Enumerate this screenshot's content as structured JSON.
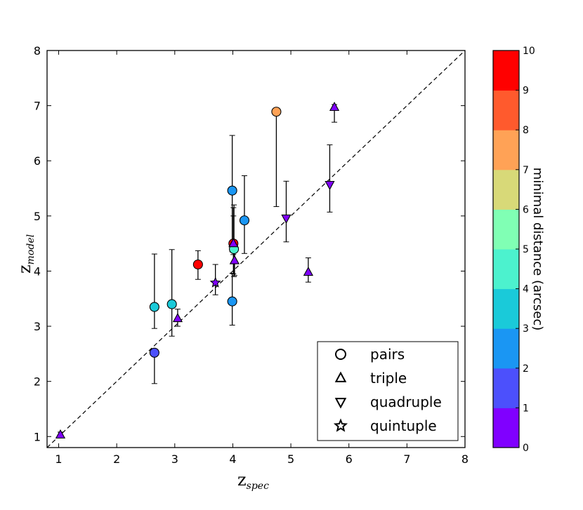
{
  "chart_data": {
    "type": "scatter",
    "title": "",
    "xlabel": {
      "main": "z",
      "sub": "spec"
    },
    "ylabel": {
      "main": "z",
      "sub": "model"
    },
    "xlim": [
      0.8,
      8
    ],
    "ylim": [
      0.8,
      8
    ],
    "xticks": [
      1,
      2,
      3,
      4,
      5,
      6,
      7,
      8
    ],
    "yticks": [
      1,
      2,
      3,
      4,
      5,
      6,
      7,
      8
    ],
    "reference_line": {
      "style": "dashed",
      "from": [
        0.8,
        0.8
      ],
      "to": [
        8,
        8
      ]
    },
    "colorbar": {
      "label": "minimal distance (arcsec)",
      "range": [
        0,
        10
      ],
      "ticks": [
        0,
        1,
        2,
        3,
        4,
        5,
        6,
        7,
        8,
        9,
        10
      ],
      "bands": [
        "#8000ff",
        "#4c50fc",
        "#1a96f3",
        "#1acad9",
        "#4cf2ce",
        "#80ffb4",
        "#d8d978",
        "#ffa256",
        "#ff5a2d",
        "#ff0000"
      ]
    },
    "legend": {
      "location": "lower-right",
      "entries": [
        {
          "marker": "circle",
          "label": "pairs"
        },
        {
          "marker": "triangle-up",
          "label": "triple"
        },
        {
          "marker": "triangle-down",
          "label": "quadruple"
        },
        {
          "marker": "star",
          "label": "quintuple"
        }
      ]
    },
    "points": [
      {
        "x": 2.65,
        "y": 2.52,
        "ylo": 1.96,
        "yhi": 2.57,
        "marker": "circle",
        "color": "#4c50fc"
      },
      {
        "x": 2.65,
        "y": 3.35,
        "ylo": 2.96,
        "yhi": 4.31,
        "marker": "circle",
        "color": "#1acad9"
      },
      {
        "x": 2.95,
        "y": 3.4,
        "ylo": 2.82,
        "yhi": 4.39,
        "marker": "circle",
        "color": "#1acad9"
      },
      {
        "x": 3.4,
        "y": 4.12,
        "ylo": 3.85,
        "yhi": 4.37,
        "marker": "circle",
        "color": "#ff0000"
      },
      {
        "x": 3.99,
        "y": 3.45,
        "ylo": 3.02,
        "yhi": 3.96,
        "marker": "circle",
        "color": "#1a96f3"
      },
      {
        "x": 3.99,
        "y": 5.46,
        "ylo": 4.35,
        "yhi": 6.46,
        "marker": "circle",
        "color": "#1a96f3"
      },
      {
        "x": 4.01,
        "y": 4.5,
        "ylo": 3.95,
        "yhi": 5.15,
        "marker": "circle",
        "color": "#ff0000"
      },
      {
        "x": 4.02,
        "y": 4.4,
        "ylo": 3.9,
        "yhi": 5.2,
        "marker": "circle",
        "color": "#4cf2ce"
      },
      {
        "x": 4.2,
        "y": 4.92,
        "ylo": 4.32,
        "yhi": 5.73,
        "marker": "circle",
        "color": "#1a96f3"
      },
      {
        "x": 4.75,
        "y": 6.89,
        "ylo": 5.17,
        "yhi": 6.89,
        "marker": "circle",
        "color": "#ffa256"
      },
      {
        "x": 1.03,
        "y": 1.03,
        "ylo": 0.98,
        "yhi": 1.08,
        "marker": "triangle-up",
        "color": "#8000ff"
      },
      {
        "x": 3.05,
        "y": 3.14,
        "ylo": 3.0,
        "yhi": 3.31,
        "marker": "triangle-up",
        "color": "#8000ff"
      },
      {
        "x": 4.03,
        "y": 4.19,
        "ylo": 3.92,
        "yhi": 4.52,
        "marker": "triangle-up",
        "color": "#8000ff"
      },
      {
        "x": 4.01,
        "y": 4.5,
        "ylo": 4.3,
        "yhi": 5.0,
        "marker": "triangle-up",
        "color": "#8000ff"
      },
      {
        "x": 5.3,
        "y": 3.98,
        "ylo": 3.8,
        "yhi": 4.24,
        "marker": "triangle-up",
        "color": "#8000ff"
      },
      {
        "x": 5.75,
        "y": 6.97,
        "ylo": 6.7,
        "yhi": 7.02,
        "marker": "triangle-up",
        "color": "#8000ff"
      },
      {
        "x": 4.92,
        "y": 4.96,
        "ylo": 4.53,
        "yhi": 5.63,
        "marker": "triangle-down",
        "color": "#8000ff"
      },
      {
        "x": 5.67,
        "y": 5.57,
        "ylo": 5.07,
        "yhi": 6.29,
        "marker": "triangle-down",
        "color": "#8000ff"
      },
      {
        "x": 3.7,
        "y": 3.79,
        "ylo": 3.57,
        "yhi": 4.12,
        "marker": "star",
        "color": "#8000ff"
      }
    ]
  }
}
